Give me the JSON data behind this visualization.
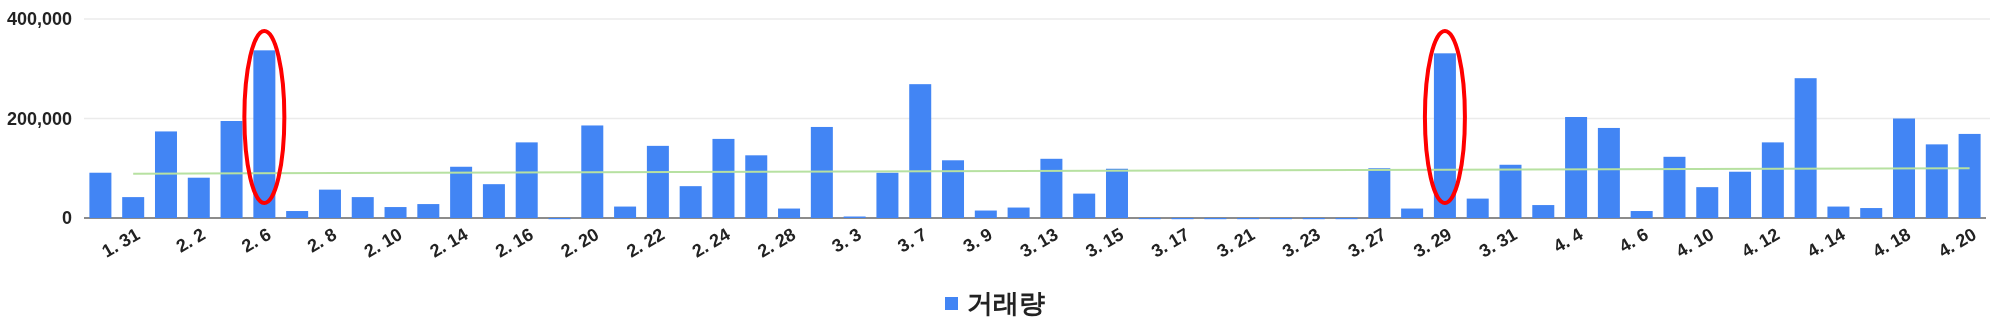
{
  "chart_data": {
    "type": "bar",
    "categories": [
      null,
      "1. 31",
      null,
      "2. 2",
      null,
      "2. 6",
      null,
      "2. 8",
      null,
      "2. 10",
      null,
      "2. 14",
      null,
      "2. 16",
      null,
      "2. 20",
      null,
      "2. 22",
      null,
      "2. 24",
      null,
      "2. 28",
      null,
      "3. 3",
      null,
      "3. 7",
      null,
      "3. 9",
      null,
      "3. 13",
      null,
      "3. 15",
      null,
      "3. 17",
      null,
      "3. 21",
      null,
      "3. 23",
      null,
      "3. 27",
      null,
      "3. 29",
      null,
      "3. 31",
      null,
      "4. 4",
      null,
      "4. 6",
      null,
      "4. 10",
      null,
      "4. 12",
      null,
      "4. 14",
      null,
      "4. 18",
      null,
      "4. 20"
    ],
    "series": [
      {
        "name": "거래량",
        "color": "#4285f4",
        "values": [
          91000,
          42000,
          174000,
          81000,
          195000,
          337000,
          14000,
          57000,
          42000,
          22000,
          28000,
          103000,
          68000,
          152000,
          0,
          186000,
          23000,
          145000,
          64000,
          159000,
          126000,
          19000,
          183000,
          3000,
          91000,
          269000,
          116000,
          15000,
          21000,
          119000,
          49000,
          99000,
          0,
          0,
          0,
          0,
          0,
          0,
          0,
          100000,
          19000,
          331000,
          39000,
          107000,
          26000,
          203000,
          181000,
          14000,
          123000,
          62000,
          93000,
          152000,
          281000,
          23000,
          20000,
          200000,
          148000,
          169000
        ]
      },
      {
        "type": "line",
        "color": "#b7e1a1",
        "x": [
          "1. 31",
          "4. 20"
        ],
        "values": [
          89000,
          100000
        ]
      }
    ],
    "ylim": [
      0,
      400000
    ],
    "yticks": [
      0,
      {
        "value": 200000,
        "label": "200,000"
      },
      {
        "value": 400000,
        "label": "400,000"
      }
    ],
    "grid": "y",
    "legend": "bottom"
  }
}
